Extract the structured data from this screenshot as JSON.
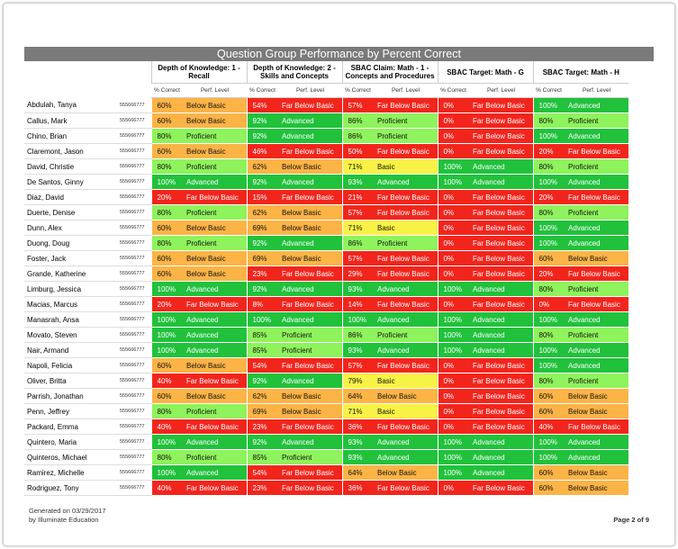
{
  "header": {
    "title": "Question Group Performance by Percent Correct"
  },
  "groups": [
    "Depth of Knowledge: 1 - Recall",
    "Depth of Knowledge: 2 - Skills and Concepts",
    "SBAC Claim: Math - 1 - Concepts and Procedures",
    "SBAC Target: Math - G",
    "SBAC Target: Math - H"
  ],
  "subheaders": {
    "pct": "% Correct",
    "level": "Perf. Level"
  },
  "level_colors": {
    "Advanced": "#21c13c",
    "Proficient": "#8ef35c",
    "Basic": "#f9f246",
    "Below Basic": "#fcb447",
    "Far Below Basic": "#f2251d"
  },
  "rows": [
    {
      "name": "Abdulah, Tanya",
      "id": "555666777",
      "scores": [
        [
          "60%",
          "Below Basic"
        ],
        [
          "54%",
          "Far Below Basic"
        ],
        [
          "57%",
          "Far Below Basic"
        ],
        [
          "0%",
          "Far Below Basic"
        ],
        [
          "100%",
          "Advanced"
        ]
      ]
    },
    {
      "name": "Callus, Mark",
      "id": "555666777",
      "scores": [
        [
          "60%",
          "Below Basic"
        ],
        [
          "92%",
          "Advanced"
        ],
        [
          "86%",
          "Proficient"
        ],
        [
          "0%",
          "Far Below Basic"
        ],
        [
          "80%",
          "Proficient"
        ]
      ]
    },
    {
      "name": "Chino, Brian",
      "id": "555666777",
      "scores": [
        [
          "80%",
          "Proficient"
        ],
        [
          "92%",
          "Advanced"
        ],
        [
          "86%",
          "Proficient"
        ],
        [
          "0%",
          "Far Below Basic"
        ],
        [
          "100%",
          "Advanced"
        ]
      ]
    },
    {
      "name": "Claremont, Jason",
      "id": "555666777",
      "scores": [
        [
          "60%",
          "Below Basic"
        ],
        [
          "46%",
          "Far Below Basic"
        ],
        [
          "50%",
          "Far Below Basic"
        ],
        [
          "0%",
          "Far Below Basic"
        ],
        [
          "20%",
          "Far Below Basic"
        ]
      ]
    },
    {
      "name": "David, Christie",
      "id": "555666777",
      "scores": [
        [
          "80%",
          "Proficient"
        ],
        [
          "62%",
          "Below Basic"
        ],
        [
          "71%",
          "Basic"
        ],
        [
          "100%",
          "Advanced"
        ],
        [
          "80%",
          "Proficient"
        ]
      ]
    },
    {
      "name": "De Santos, Ginny",
      "id": "555666777",
      "scores": [
        [
          "100%",
          "Advanced"
        ],
        [
          "92%",
          "Advanced"
        ],
        [
          "93%",
          "Advanced"
        ],
        [
          "100%",
          "Advanced"
        ],
        [
          "100%",
          "Advanced"
        ]
      ]
    },
    {
      "name": "Diaz, David",
      "id": "555666777",
      "scores": [
        [
          "20%",
          "Far Below Basic"
        ],
        [
          "15%",
          "Far Below Basic"
        ],
        [
          "21%",
          "Far Below Basic"
        ],
        [
          "0%",
          "Far Below Basic"
        ],
        [
          "20%",
          "Far Below Basic"
        ]
      ]
    },
    {
      "name": "Duerte, Denise",
      "id": "555666777",
      "scores": [
        [
          "80%",
          "Proficient"
        ],
        [
          "62%",
          "Below Basic"
        ],
        [
          "57%",
          "Far Below Basic"
        ],
        [
          "0%",
          "Far Below Basic"
        ],
        [
          "80%",
          "Proficient"
        ]
      ]
    },
    {
      "name": "Dunn, Alex",
      "id": "555666777",
      "scores": [
        [
          "60%",
          "Below Basic"
        ],
        [
          "69%",
          "Below Basic"
        ],
        [
          "71%",
          "Basic"
        ],
        [
          "0%",
          "Far Below Basic"
        ],
        [
          "100%",
          "Advanced"
        ]
      ]
    },
    {
      "name": "Duong, Doug",
      "id": "555666777",
      "scores": [
        [
          "80%",
          "Proficient"
        ],
        [
          "92%",
          "Advanced"
        ],
        [
          "86%",
          "Proficient"
        ],
        [
          "0%",
          "Far Below Basic"
        ],
        [
          "100%",
          "Advanced"
        ]
      ]
    },
    {
      "name": "Foster, Jack",
      "id": "555666777",
      "scores": [
        [
          "60%",
          "Below Basic"
        ],
        [
          "69%",
          "Below Basic"
        ],
        [
          "57%",
          "Far Below Basic"
        ],
        [
          "0%",
          "Far Below Basic"
        ],
        [
          "60%",
          "Below Basic"
        ]
      ]
    },
    {
      "name": "Grande, Katherine",
      "id": "555666777",
      "scores": [
        [
          "60%",
          "Below Basic"
        ],
        [
          "23%",
          "Far Below Basic"
        ],
        [
          "29%",
          "Far Below Basic"
        ],
        [
          "0%",
          "Far Below Basic"
        ],
        [
          "20%",
          "Far Below Basic"
        ]
      ]
    },
    {
      "name": "Limburg, Jessica",
      "id": "555666777",
      "scores": [
        [
          "100%",
          "Advanced"
        ],
        [
          "92%",
          "Advanced"
        ],
        [
          "93%",
          "Advanced"
        ],
        [
          "100%",
          "Advanced"
        ],
        [
          "80%",
          "Proficient"
        ]
      ]
    },
    {
      "name": "Macias, Marcus",
      "id": "555666777",
      "scores": [
        [
          "20%",
          "Far Below Basic"
        ],
        [
          "8%",
          "Far Below Basic"
        ],
        [
          "14%",
          "Far Below Basic"
        ],
        [
          "0%",
          "Far Below Basic"
        ],
        [
          "0%",
          "Far Below Basic"
        ]
      ]
    },
    {
      "name": "Manasrah, Ansa",
      "id": "555666777",
      "scores": [
        [
          "100%",
          "Advanced"
        ],
        [
          "100%",
          "Advanced"
        ],
        [
          "100%",
          "Advanced"
        ],
        [
          "100%",
          "Advanced"
        ],
        [
          "100%",
          "Advanced"
        ]
      ]
    },
    {
      "name": "Movato, Steven",
      "id": "555666777",
      "scores": [
        [
          "100%",
          "Advanced"
        ],
        [
          "85%",
          "Proficient"
        ],
        [
          "86%",
          "Proficient"
        ],
        [
          "100%",
          "Advanced"
        ],
        [
          "80%",
          "Proficient"
        ]
      ]
    },
    {
      "name": "Nair, Armand",
      "id": "555666777",
      "scores": [
        [
          "100%",
          "Advanced"
        ],
        [
          "85%",
          "Proficient"
        ],
        [
          "93%",
          "Advanced"
        ],
        [
          "100%",
          "Advanced"
        ],
        [
          "100%",
          "Advanced"
        ]
      ]
    },
    {
      "name": "Napoli, Felicia",
      "id": "555666777",
      "scores": [
        [
          "60%",
          "Below Basic"
        ],
        [
          "54%",
          "Far Below Basic"
        ],
        [
          "57%",
          "Far Below Basic"
        ],
        [
          "0%",
          "Far Below Basic"
        ],
        [
          "100%",
          "Advanced"
        ]
      ]
    },
    {
      "name": "Oliver, Britta",
      "id": "555666777",
      "scores": [
        [
          "40%",
          "Far Below Basic"
        ],
        [
          "92%",
          "Advanced"
        ],
        [
          "79%",
          "Basic"
        ],
        [
          "0%",
          "Far Below Basic"
        ],
        [
          "80%",
          "Proficient"
        ]
      ]
    },
    {
      "name": "Parrish, Jonathan",
      "id": "555666777",
      "scores": [
        [
          "60%",
          "Below Basic"
        ],
        [
          "62%",
          "Below Basic"
        ],
        [
          "64%",
          "Below Basic"
        ],
        [
          "0%",
          "Far Below Basic"
        ],
        [
          "60%",
          "Below Basic"
        ]
      ]
    },
    {
      "name": "Penn, Jeffrey",
      "id": "555666777",
      "scores": [
        [
          "80%",
          "Proficient"
        ],
        [
          "69%",
          "Below Basic"
        ],
        [
          "71%",
          "Basic"
        ],
        [
          "0%",
          "Far Below Basic"
        ],
        [
          "60%",
          "Below Basic"
        ]
      ]
    },
    {
      "name": "Packard, Emma",
      "id": "555666777",
      "scores": [
        [
          "40%",
          "Far Below Basic"
        ],
        [
          "23%",
          "Far Below Basic"
        ],
        [
          "36%",
          "Far Below Basic"
        ],
        [
          "0%",
          "Far Below Basic"
        ],
        [
          "40%",
          "Far Below Basic"
        ]
      ]
    },
    {
      "name": "Quintero, Maria",
      "id": "555666777",
      "scores": [
        [
          "100%",
          "Advanced"
        ],
        [
          "92%",
          "Advanced"
        ],
        [
          "93%",
          "Advanced"
        ],
        [
          "100%",
          "Advanced"
        ],
        [
          "100%",
          "Advanced"
        ]
      ]
    },
    {
      "name": "Quinteros, Michael",
      "id": "555666777",
      "scores": [
        [
          "80%",
          "Proficient"
        ],
        [
          "85%",
          "Proficient"
        ],
        [
          "93%",
          "Advanced"
        ],
        [
          "100%",
          "Advanced"
        ],
        [
          "100%",
          "Advanced"
        ]
      ]
    },
    {
      "name": "Ramirez, Michelle",
      "id": "555666777",
      "scores": [
        [
          "100%",
          "Advanced"
        ],
        [
          "54%",
          "Far Below Basic"
        ],
        [
          "64%",
          "Below Basic"
        ],
        [
          "100%",
          "Advanced"
        ],
        [
          "60%",
          "Below Basic"
        ]
      ]
    },
    {
      "name": "Rodriguez, Tony",
      "id": "555666777",
      "scores": [
        [
          "40%",
          "Far Below Basic"
        ],
        [
          "23%",
          "Far Below Basic"
        ],
        [
          "36%",
          "Far Below Basic"
        ],
        [
          "0%",
          "Far Below Basic"
        ],
        [
          "60%",
          "Below Basic"
        ]
      ]
    }
  ],
  "footer": {
    "generated": "Generated on 03/29/2017",
    "by": "by Illuminate Education",
    "page": "Page 2 of 9"
  }
}
